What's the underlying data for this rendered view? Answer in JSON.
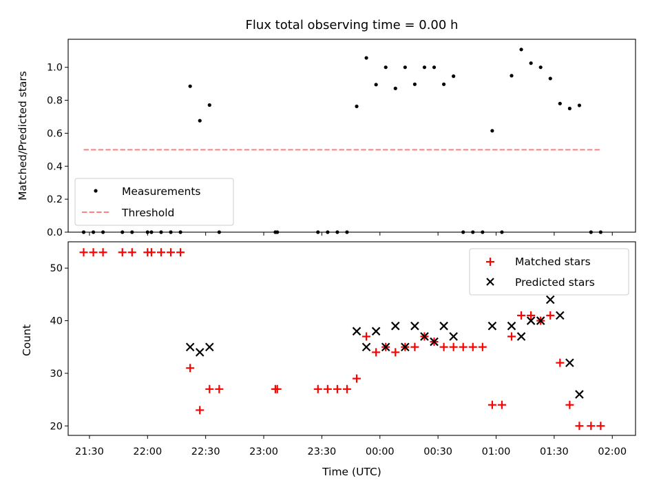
{
  "chart_data": [
    {
      "type": "scatter",
      "title": "Flux total observing time = 0.00 h",
      "xlabel": "",
      "ylabel": "Matched/Predicted stars",
      "xlim": [
        "21:19",
        "02:12"
      ],
      "ylim": [
        0,
        1.17
      ],
      "yticks": [
        0.0,
        0.2,
        0.4,
        0.6,
        0.8,
        1.0
      ],
      "ytick_labels": [
        "0.0",
        "0.2",
        "0.4",
        "0.6",
        "0.8",
        "1.0"
      ],
      "legend": {
        "position": "lower-left",
        "entries": [
          "Measurements",
          "Threshold"
        ]
      },
      "threshold": {
        "name": "Threshold",
        "value": 0.5,
        "x_start": "21:27",
        "x_end": "01:54",
        "color": "#ff7f7f",
        "style": "dashed"
      },
      "series": [
        {
          "name": "Measurements",
          "color": "#000000",
          "marker": "dot",
          "points": [
            [
              "21:27",
              0.0
            ],
            [
              "21:32",
              0.0
            ],
            [
              "21:37",
              0.0
            ],
            [
              "21:47",
              0.0
            ],
            [
              "21:52",
              0.0
            ],
            [
              "22:00",
              0.0
            ],
            [
              "22:02",
              0.0
            ],
            [
              "22:07",
              0.0
            ],
            [
              "22:12",
              0.0
            ],
            [
              "22:17",
              0.0
            ],
            [
              "22:22",
              0.885
            ],
            [
              "22:27",
              0.676
            ],
            [
              "22:32",
              0.771
            ],
            [
              "22:37",
              0.0
            ],
            [
              "23:06",
              0.0
            ],
            [
              "23:07",
              0.0
            ],
            [
              "23:28",
              0.0
            ],
            [
              "23:33",
              0.0
            ],
            [
              "23:38",
              0.0
            ],
            [
              "23:43",
              0.0
            ],
            [
              "23:48",
              0.763
            ],
            [
              "23:53",
              1.057
            ],
            [
              "23:58",
              0.895
            ],
            [
              "00:03",
              1.0
            ],
            [
              "00:08",
              0.872
            ],
            [
              "00:13",
              1.0
            ],
            [
              "00:18",
              0.897
            ],
            [
              "00:23",
              1.0
            ],
            [
              "00:28",
              1.0
            ],
            [
              "00:33",
              0.897
            ],
            [
              "00:38",
              0.946
            ],
            [
              "00:43",
              0.0
            ],
            [
              "00:48",
              0.0
            ],
            [
              "00:53",
              0.0
            ],
            [
              "00:58",
              0.615
            ],
            [
              "01:03",
              0.0
            ],
            [
              "01:08",
              0.949
            ],
            [
              "01:13",
              1.108
            ],
            [
              "01:18",
              1.025
            ],
            [
              "01:23",
              1.0
            ],
            [
              "01:28",
              0.932
            ],
            [
              "01:33",
              0.78
            ],
            [
              "01:38",
              0.75
            ],
            [
              "01:43",
              0.769
            ],
            [
              "01:49",
              0.0
            ],
            [
              "01:54",
              0.0
            ]
          ]
        }
      ]
    },
    {
      "type": "scatter",
      "title": "",
      "xlabel": "Time (UTC)",
      "ylabel": "Count",
      "xlim": [
        "21:19",
        "02:12"
      ],
      "ylim": [
        18.2,
        55.0
      ],
      "yticks": [
        20,
        30,
        40,
        50
      ],
      "ytick_labels": [
        "20",
        "30",
        "40",
        "50"
      ],
      "xticks": [
        "21:30",
        "22:00",
        "22:30",
        "23:00",
        "23:30",
        "00:00",
        "00:30",
        "01:00",
        "01:30",
        "02:00"
      ],
      "legend": {
        "position": "upper-right",
        "entries": [
          "Matched stars",
          "Predicted stars"
        ]
      },
      "series": [
        {
          "name": "Matched stars",
          "color": "#ff0000",
          "marker": "plus",
          "points": [
            [
              "21:27",
              53
            ],
            [
              "21:32",
              53
            ],
            [
              "21:37",
              53
            ],
            [
              "21:47",
              53
            ],
            [
              "21:52",
              53
            ],
            [
              "22:00",
              53
            ],
            [
              "22:02",
              53
            ],
            [
              "22:07",
              53
            ],
            [
              "22:12",
              53
            ],
            [
              "22:17",
              53
            ],
            [
              "22:22",
              31
            ],
            [
              "22:27",
              23
            ],
            [
              "22:32",
              27
            ],
            [
              "22:37",
              27
            ],
            [
              "23:06",
              27
            ],
            [
              "23:07",
              27
            ],
            [
              "23:28",
              27
            ],
            [
              "23:33",
              27
            ],
            [
              "23:38",
              27
            ],
            [
              "23:43",
              27
            ],
            [
              "23:48",
              29
            ],
            [
              "23:53",
              37
            ],
            [
              "23:58",
              34
            ],
            [
              "00:03",
              35
            ],
            [
              "00:08",
              34
            ],
            [
              "00:13",
              35
            ],
            [
              "00:18",
              35
            ],
            [
              "00:23",
              37
            ],
            [
              "00:28",
              36
            ],
            [
              "00:33",
              35
            ],
            [
              "00:38",
              35
            ],
            [
              "00:43",
              35
            ],
            [
              "00:48",
              35
            ],
            [
              "00:53",
              35
            ],
            [
              "00:58",
              24
            ],
            [
              "01:03",
              24
            ],
            [
              "01:08",
              37
            ],
            [
              "01:13",
              41
            ],
            [
              "01:18",
              41
            ],
            [
              "01:23",
              40
            ],
            [
              "01:28",
              41
            ],
            [
              "01:33",
              32
            ],
            [
              "01:38",
              24
            ],
            [
              "01:43",
              20
            ],
            [
              "01:49",
              20
            ],
            [
              "01:54",
              20
            ]
          ]
        },
        {
          "name": "Predicted stars",
          "color": "#000000",
          "marker": "x",
          "points": [
            [
              "22:22",
              35
            ],
            [
              "22:27",
              34
            ],
            [
              "22:32",
              35
            ],
            [
              "23:48",
              38
            ],
            [
              "23:53",
              35
            ],
            [
              "23:58",
              38
            ],
            [
              "00:03",
              35
            ],
            [
              "00:08",
              39
            ],
            [
              "00:13",
              35
            ],
            [
              "00:18",
              39
            ],
            [
              "00:23",
              37
            ],
            [
              "00:28",
              36
            ],
            [
              "00:33",
              39
            ],
            [
              "00:38",
              37
            ],
            [
              "00:58",
              39
            ],
            [
              "01:08",
              39
            ],
            [
              "01:13",
              37
            ],
            [
              "01:18",
              40
            ],
            [
              "01:23",
              40
            ],
            [
              "01:28",
              44
            ],
            [
              "01:33",
              41
            ],
            [
              "01:38",
              32
            ],
            [
              "01:43",
              26
            ]
          ]
        }
      ]
    }
  ]
}
